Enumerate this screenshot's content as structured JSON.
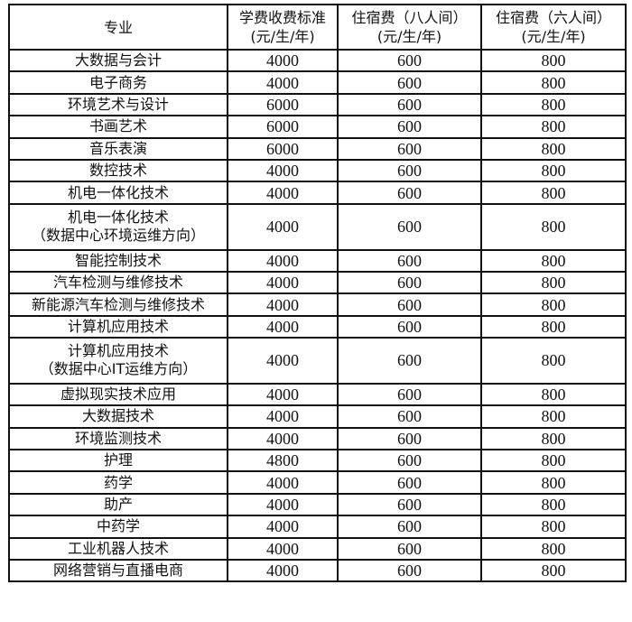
{
  "headers": [
    {
      "line1": "专业",
      "line2": ""
    },
    {
      "line1": "学费收费标准",
      "line2": "(元/生/年)"
    },
    {
      "line1": "住宿费（八人间）",
      "line2": "(元/生/年)"
    },
    {
      "line1": "住宿费（六人间）",
      "line2": "(元/生/年)"
    }
  ],
  "rows": [
    {
      "name": "大数据与会计",
      "name2": "",
      "tuition": "4000",
      "dorm8": "600",
      "dorm6": "800"
    },
    {
      "name": "电子商务",
      "name2": "",
      "tuition": "4000",
      "dorm8": "600",
      "dorm6": "800"
    },
    {
      "name": "环境艺术与设计",
      "name2": "",
      "tuition": "6000",
      "dorm8": "600",
      "dorm6": "800"
    },
    {
      "name": "书画艺术",
      "name2": "",
      "tuition": "6000",
      "dorm8": "600",
      "dorm6": "800"
    },
    {
      "name": "音乐表演",
      "name2": "",
      "tuition": "6000",
      "dorm8": "600",
      "dorm6": "800"
    },
    {
      "name": "数控技术",
      "name2": "",
      "tuition": "4000",
      "dorm8": "600",
      "dorm6": "800"
    },
    {
      "name": "机电一体化技术",
      "name2": "",
      "tuition": "4000",
      "dorm8": "600",
      "dorm6": "800"
    },
    {
      "name": "机电一体化技术",
      "name2": "（数据中心环境运维方向）",
      "tuition": "4000",
      "dorm8": "600",
      "dorm6": "800"
    },
    {
      "name": "智能控制技术",
      "name2": "",
      "tuition": "4000",
      "dorm8": "600",
      "dorm6": "800"
    },
    {
      "name": "汽车检测与维修技术",
      "name2": "",
      "tuition": "4000",
      "dorm8": "600",
      "dorm6": "800"
    },
    {
      "name": "新能源汽车检测与维修技术",
      "name2": "",
      "tuition": "4000",
      "dorm8": "600",
      "dorm6": "800"
    },
    {
      "name": "计算机应用技术",
      "name2": "",
      "tuition": "4000",
      "dorm8": "600",
      "dorm6": "800"
    },
    {
      "name": "计算机应用技术",
      "name2": "（数据中心IT运维方向）",
      "tuition": "4000",
      "dorm8": "600",
      "dorm6": "800"
    },
    {
      "name": "虚拟现实技术应用",
      "name2": "",
      "tuition": "4000",
      "dorm8": "600",
      "dorm6": "800"
    },
    {
      "name": "大数据技术",
      "name2": "",
      "tuition": "4000",
      "dorm8": "600",
      "dorm6": "800"
    },
    {
      "name": "环境监测技术",
      "name2": "",
      "tuition": "4000",
      "dorm8": "600",
      "dorm6": "800"
    },
    {
      "name": "护理",
      "name2": "",
      "tuition": "4800",
      "dorm8": "600",
      "dorm6": "800"
    },
    {
      "name": "药学",
      "name2": "",
      "tuition": "4000",
      "dorm8": "600",
      "dorm6": "800"
    },
    {
      "name": "助产",
      "name2": "",
      "tuition": "4000",
      "dorm8": "600",
      "dorm6": "800"
    },
    {
      "name": "中药学",
      "name2": "",
      "tuition": "4000",
      "dorm8": "600",
      "dorm6": "800"
    },
    {
      "name": "工业机器人技术",
      "name2": "",
      "tuition": "4000",
      "dorm8": "600",
      "dorm6": "800"
    },
    {
      "name": "网络营销与直播电商",
      "name2": "",
      "tuition": "4000",
      "dorm8": "600",
      "dorm6": "800"
    }
  ]
}
